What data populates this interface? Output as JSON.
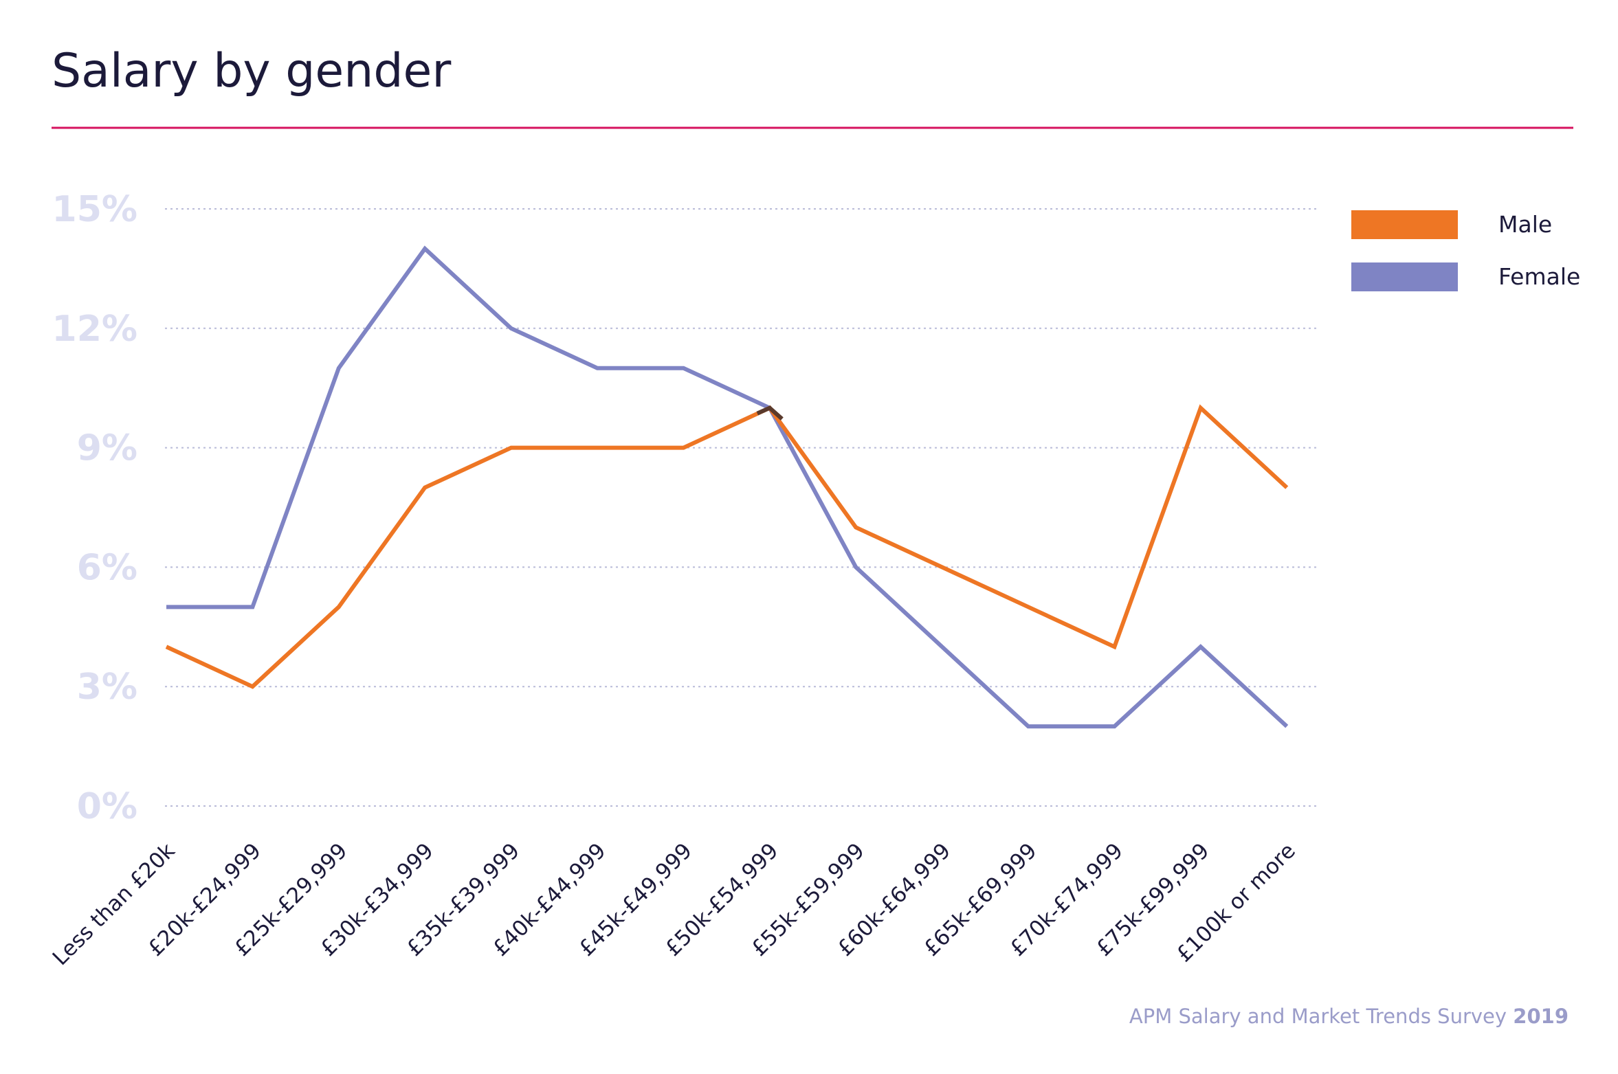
{
  "header": {
    "title": "Salary by gender"
  },
  "footer": {
    "source": "APM Salary and Market Trends Survey",
    "year": "2019"
  },
  "colors": {
    "title": "#1c1a3a",
    "rule": "#d6135f",
    "male": "#ee7624",
    "female": "#7f84c4",
    "ytick": "#dcdef1",
    "xtick": "#1c1a3a",
    "grid": "#b9bbd8",
    "footer": "#9a9cc9",
    "overlap": "#5a3a2c"
  },
  "chart_data": {
    "type": "line",
    "title": "Salary by gender",
    "xlabel": "",
    "ylabel": "",
    "categories": [
      "Less than £20k",
      "£20k-£24,999",
      "£25k-£29,999",
      "£30k-£34,999",
      "£35k-£39,999",
      "£40k-£44,999",
      "£45k-£49,999",
      "£50k-£54,999",
      "£55k-£59,999",
      "£60k-£64,999",
      "£65k-£69,999",
      "£70k-£74,999",
      "£75k-£99,999",
      "£100k or more"
    ],
    "series": [
      {
        "name": "Male",
        "color": "#ee7624",
        "values": [
          4,
          3,
          5,
          8,
          9,
          9,
          9,
          10,
          7,
          6,
          5,
          4,
          10,
          8
        ]
      },
      {
        "name": "Female",
        "color": "#7f84c4",
        "values": [
          5,
          5,
          11,
          14,
          12,
          11,
          11,
          10,
          6,
          4,
          2,
          2,
          4,
          2
        ]
      }
    ],
    "yticks": [
      0,
      3,
      6,
      9,
      12,
      15
    ],
    "ytick_labels": [
      "0%",
      "3%",
      "6%",
      "9%",
      "12%",
      "15%"
    ],
    "ylim": [
      0,
      15
    ],
    "grid": "horizontal-dotted",
    "legend": "top-right"
  }
}
